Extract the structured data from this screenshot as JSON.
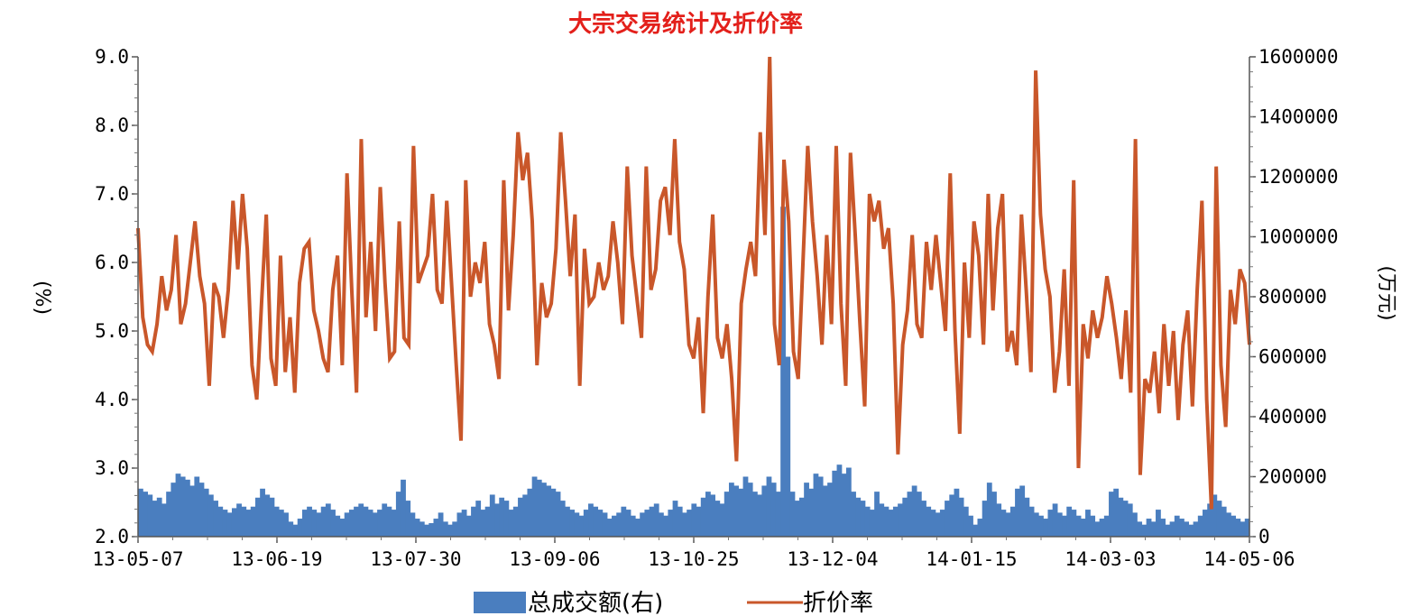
{
  "chart_data": {
    "type": "bar+line",
    "title": "大宗交易统计及折价率",
    "left_axis": {
      "unit": "(%)",
      "ylim": [
        2.0,
        9.0
      ],
      "ticks": [
        "2.0",
        "3.0",
        "4.0",
        "5.0",
        "6.0",
        "7.0",
        "8.0",
        "9.0"
      ]
    },
    "right_axis": {
      "unit": "(万元)",
      "ylim": [
        0,
        1600000
      ],
      "ticks": [
        "0",
        "200000",
        "400000",
        "600000",
        "800000",
        "1000000",
        "1200000",
        "1400000",
        "1600000"
      ]
    },
    "x_axis": {
      "tick_labels": [
        "13-05-07",
        "13-06-19",
        "13-07-30",
        "13-09-06",
        "13-10-25",
        "13-12-04",
        "14-01-15",
        "14-03-03",
        "14-05-06"
      ]
    },
    "legend": {
      "placement": "bottom",
      "items": [
        {
          "label": "总成交额(右)",
          "color": "#4a7ebf",
          "kind": "area"
        },
        {
          "label": "折价率",
          "color": "#c9572a",
          "kind": "line"
        }
      ]
    },
    "series": [
      {
        "name": "折价率",
        "axis": "left",
        "color": "#c9572a",
        "values": [
          6.5,
          5.2,
          4.8,
          4.7,
          5.1,
          5.8,
          5.3,
          5.6,
          6.4,
          5.1,
          5.4,
          6.0,
          6.6,
          5.8,
          5.4,
          4.2,
          5.7,
          5.5,
          4.9,
          5.6,
          6.9,
          5.9,
          7.0,
          6.2,
          4.5,
          4.0,
          5.4,
          6.7,
          4.6,
          4.2,
          6.1,
          4.4,
          5.2,
          4.1,
          5.7,
          6.2,
          6.3,
          5.3,
          5.0,
          4.6,
          4.4,
          5.6,
          6.1,
          4.5,
          7.3,
          5.6,
          4.1,
          7.8,
          5.2,
          6.3,
          5.0,
          7.1,
          5.7,
          4.6,
          4.7,
          6.6,
          4.9,
          4.8,
          7.7,
          5.7,
          5.9,
          6.1,
          7.0,
          5.6,
          5.4,
          6.9,
          5.7,
          4.5,
          3.4,
          7.2,
          5.5,
          6.0,
          5.7,
          6.3,
          5.1,
          4.8,
          4.3,
          7.2,
          5.3,
          6.4,
          7.9,
          7.2,
          7.6,
          6.6,
          4.5,
          5.7,
          5.2,
          5.4,
          6.2,
          7.9,
          6.9,
          5.8,
          6.7,
          4.2,
          6.2,
          5.4,
          5.5,
          6.0,
          5.6,
          5.8,
          6.6,
          6.0,
          5.1,
          7.4,
          6.1,
          5.5,
          4.9,
          7.4,
          5.6,
          5.9,
          6.9,
          7.1,
          6.4,
          7.8,
          6.3,
          5.9,
          4.8,
          4.6,
          5.2,
          3.8,
          5.5,
          6.7,
          4.9,
          4.6,
          5.1,
          4.3,
          3.1,
          5.4,
          5.9,
          6.3,
          5.8,
          7.9,
          6.4,
          9.0,
          5.1,
          4.5,
          7.5,
          6.6,
          4.7,
          4.3,
          6.0,
          7.7,
          6.6,
          5.8,
          4.8,
          6.4,
          5.1,
          7.7,
          5.4,
          4.2,
          7.6,
          6.4,
          5.1,
          3.9,
          7.0,
          6.6,
          6.9,
          6.2,
          6.5,
          5.4,
          3.2,
          4.8,
          5.3,
          6.4,
          5.1,
          4.9,
          6.3,
          5.6,
          6.4,
          5.7,
          5.0,
          7.3,
          5.0,
          3.5,
          6.0,
          4.9,
          6.6,
          6.1,
          4.8,
          7.0,
          5.3,
          6.5,
          7.0,
          4.7,
          5.0,
          4.5,
          6.7,
          5.6,
          4.4,
          8.8,
          6.7,
          5.9,
          5.5,
          4.1,
          4.7,
          5.9,
          4.2,
          7.2,
          3.0,
          5.1,
          4.6,
          5.3,
          4.9,
          5.2,
          5.8,
          5.4,
          4.9,
          4.3,
          5.3,
          4.1,
          7.8,
          2.9,
          4.3,
          4.1,
          4.7,
          3.8,
          5.1,
          4.2,
          5.0,
          3.7,
          4.8,
          5.3,
          3.9,
          5.6,
          6.9,
          4.0,
          2.4,
          7.4,
          4.5,
          3.6,
          5.6,
          5.1,
          5.9,
          5.7,
          4.8
        ]
      },
      {
        "name": "总成交额(右)",
        "axis": "right",
        "color": "#4a7ebf",
        "values": [
          160000,
          150000,
          140000,
          120000,
          130000,
          110000,
          150000,
          180000,
          210000,
          200000,
          190000,
          170000,
          200000,
          180000,
          160000,
          140000,
          120000,
          100000,
          90000,
          80000,
          95000,
          110000,
          100000,
          90000,
          100000,
          130000,
          160000,
          140000,
          130000,
          100000,
          90000,
          80000,
          50000,
          40000,
          60000,
          90000,
          100000,
          90000,
          80000,
          100000,
          110000,
          90000,
          70000,
          60000,
          80000,
          90000,
          100000,
          110000,
          100000,
          90000,
          80000,
          90000,
          110000,
          100000,
          90000,
          150000,
          190000,
          120000,
          80000,
          60000,
          50000,
          40000,
          45000,
          60000,
          80000,
          50000,
          40000,
          50000,
          80000,
          90000,
          70000,
          100000,
          120000,
          90000,
          100000,
          140000,
          110000,
          130000,
          120000,
          90000,
          100000,
          130000,
          140000,
          160000,
          200000,
          190000,
          180000,
          170000,
          160000,
          150000,
          120000,
          100000,
          90000,
          80000,
          70000,
          90000,
          110000,
          100000,
          90000,
          80000,
          60000,
          70000,
          80000,
          100000,
          90000,
          70000,
          60000,
          80000,
          90000,
          100000,
          110000,
          80000,
          70000,
          90000,
          120000,
          100000,
          80000,
          90000,
          110000,
          100000,
          130000,
          150000,
          140000,
          120000,
          110000,
          150000,
          180000,
          170000,
          160000,
          200000,
          180000,
          150000,
          140000,
          170000,
          200000,
          180000,
          150000,
          1100000,
          600000,
          150000,
          120000,
          130000,
          180000,
          160000,
          210000,
          200000,
          170000,
          180000,
          220000,
          240000,
          210000,
          230000,
          150000,
          130000,
          120000,
          100000,
          90000,
          150000,
          110000,
          100000,
          90000,
          100000,
          110000,
          130000,
          150000,
          170000,
          150000,
          120000,
          100000,
          90000,
          80000,
          90000,
          120000,
          140000,
          160000,
          130000,
          100000,
          70000,
          40000,
          60000,
          120000,
          180000,
          150000,
          110000,
          90000,
          80000,
          100000,
          160000,
          170000,
          130000,
          100000,
          80000,
          70000,
          60000,
          90000,
          110000,
          80000,
          70000,
          100000,
          90000,
          70000,
          60000,
          90000,
          70000,
          50000,
          60000,
          70000,
          150000,
          160000,
          130000,
          120000,
          110000,
          80000,
          50000,
          40000,
          60000,
          50000,
          90000,
          60000,
          40000,
          50000,
          70000,
          60000,
          50000,
          40000,
          50000,
          70000,
          90000,
          110000,
          140000,
          120000,
          100000,
          80000,
          70000,
          60000,
          50000,
          60000
        ]
      }
    ]
  }
}
